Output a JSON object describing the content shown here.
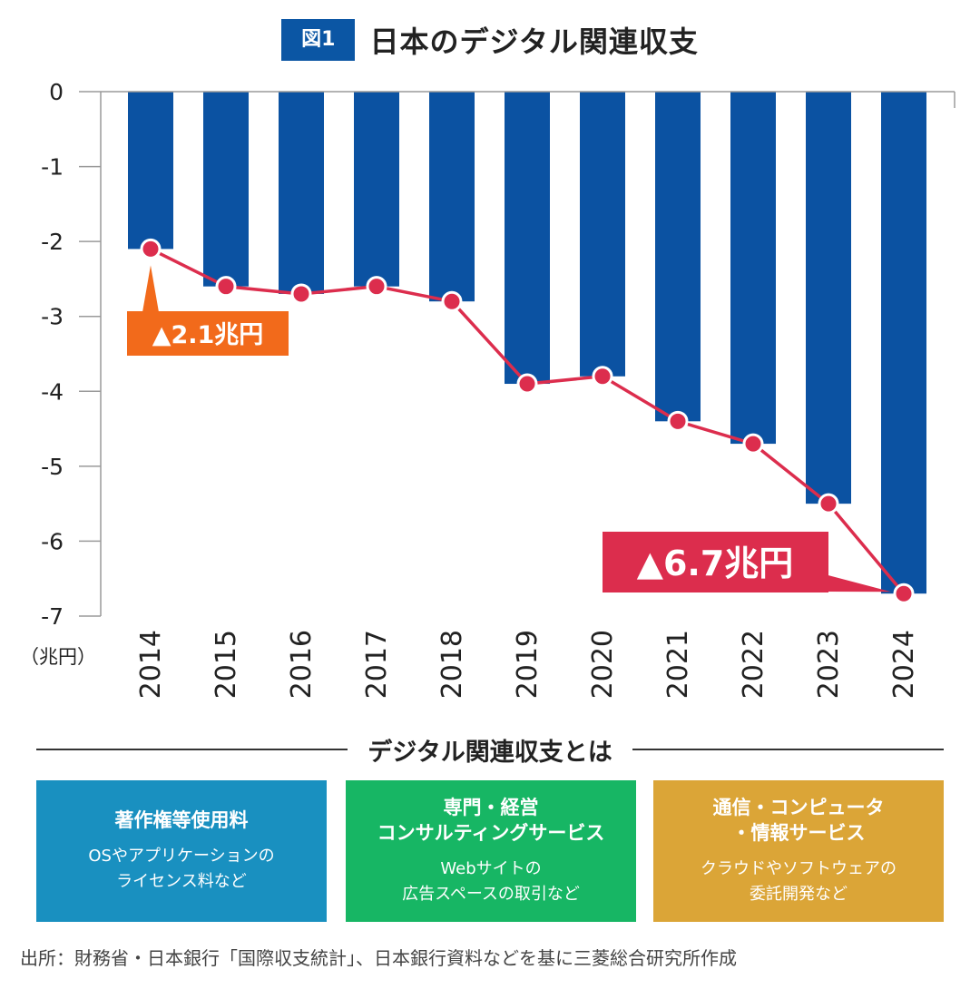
{
  "header": {
    "badge": "図1",
    "title": "日本のデジタル関連収支"
  },
  "chart_data": {
    "type": "bar",
    "categories": [
      "2014",
      "2015",
      "2016",
      "2017",
      "2018",
      "2019",
      "2020",
      "2021",
      "2022",
      "2023",
      "2024"
    ],
    "series": [
      {
        "values": [
          -2.1,
          -2.6,
          -2.7,
          -2.6,
          -2.8,
          -3.9,
          -3.8,
          -4.4,
          -4.7,
          -5.5,
          -6.7
        ],
        "render": "bar"
      },
      {
        "values": [
          -2.1,
          -2.6,
          -2.7,
          -2.6,
          -2.8,
          -3.9,
          -3.8,
          -4.4,
          -4.7,
          -5.5,
          -6.7
        ],
        "render": "line-markers"
      }
    ],
    "y_ticks": [
      "0",
      "-1",
      "-2",
      "-3",
      "-4",
      "-5",
      "-6",
      "-7"
    ],
    "ylim": [
      -7,
      0
    ],
    "unit_label": "（兆円）",
    "grid": false,
    "annotations": [
      {
        "text": "▲2.1兆円",
        "category": "2014",
        "value": -2.1
      },
      {
        "text": "▲6.7兆円",
        "category": "2024",
        "value": -6.7
      }
    ],
    "colors": {
      "bar": "#0b52a2",
      "line": "#dc2d4d",
      "annotation_1": "#f26a1b",
      "annotation_2": "#dc2d4d"
    }
  },
  "definition": {
    "heading": "デジタル関連収支とは",
    "boxes": [
      {
        "title": "著作権等使用料",
        "desc": "OSやアプリケーションの\nライセンス料など",
        "color": "#1990c0"
      },
      {
        "title": "専門・経営\nコンサルティングサービス",
        "desc": "Webサイトの\n広告スペースの取引など",
        "color": "#17b664"
      },
      {
        "title": "通信・コンピュータ\n・情報サービス",
        "desc": "クラウドやソフトウェアの\n委託開発など",
        "color": "#dba537"
      }
    ]
  },
  "source": "出所：財務省・日本銀行「国際収支統計」、日本銀行資料などを基に三菱総合研究所作成"
}
